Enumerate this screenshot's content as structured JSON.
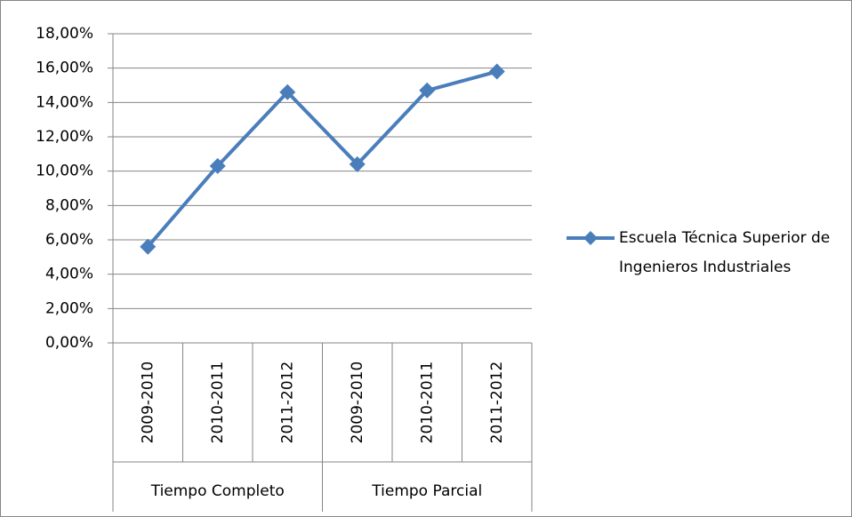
{
  "chart_data": {
    "type": "line",
    "categories": [
      "2009-2010",
      "2010-2011",
      "2011-2012",
      "2009-2010",
      "2010-2011",
      "2011-2012"
    ],
    "groups": [
      "Tiempo Completo",
      "Tiempo Parcial"
    ],
    "series": [
      {
        "name": "Escuela Técnica Superior de Ingenieros Industriales",
        "color": "#4a7ebb",
        "values": [
          5.6,
          10.3,
          14.6,
          10.4,
          14.7,
          15.8
        ]
      }
    ],
    "ylim": [
      0,
      18
    ],
    "yticks": [
      {
        "value": 0,
        "label": "0,00%"
      },
      {
        "value": 2,
        "label": "2,00%"
      },
      {
        "value": 4,
        "label": "4,00%"
      },
      {
        "value": 6,
        "label": "6,00%"
      },
      {
        "value": 8,
        "label": "8,00%"
      },
      {
        "value": 10,
        "label": "10,00%"
      },
      {
        "value": 12,
        "label": "12,00%"
      },
      {
        "value": 14,
        "label": "14,00%"
      },
      {
        "value": 16,
        "label": "16,00%"
      },
      {
        "value": 18,
        "label": "18,00%"
      }
    ],
    "grid": true,
    "legend": "right"
  }
}
